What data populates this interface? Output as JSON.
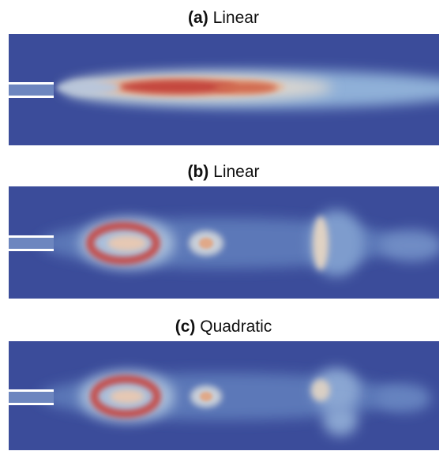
{
  "panels": [
    {
      "label": "(a)",
      "title": "Linear"
    },
    {
      "label": "(b)",
      "title": "Linear"
    },
    {
      "label": "(c)",
      "title": "Quadratic"
    }
  ]
}
